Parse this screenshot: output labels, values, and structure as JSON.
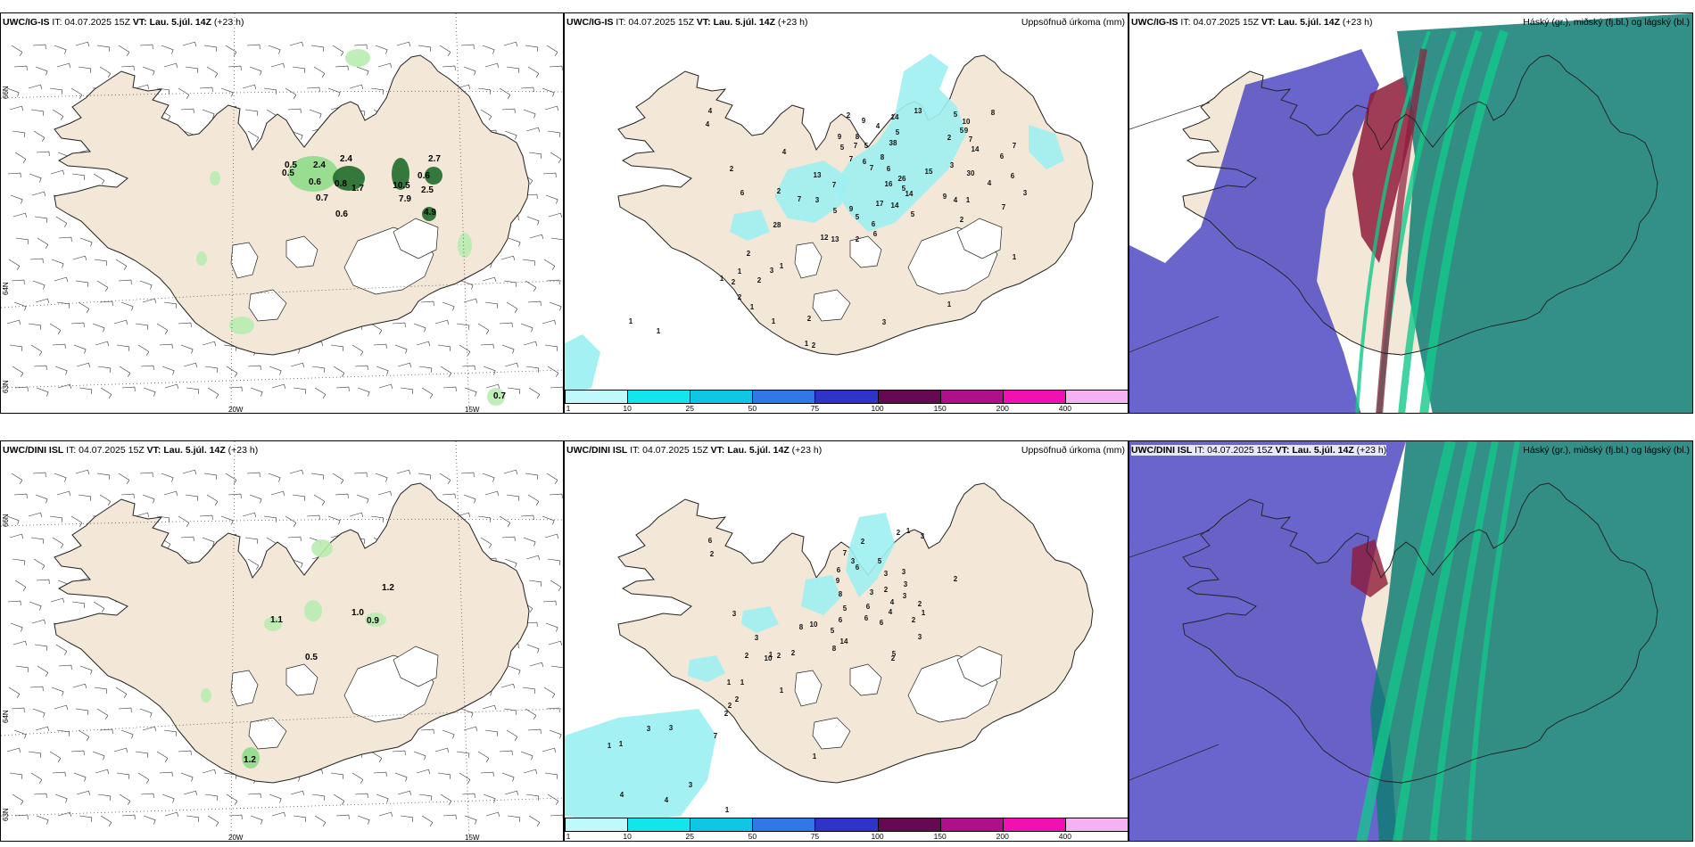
{
  "colors": {
    "land": "#f3e7d7",
    "coast": "#222222",
    "light_green": "#b9ecb0",
    "dark_green": "#1f6b2a",
    "cyan": "#9ef0f2",
    "purple": "#4f4ac4",
    "dark_red": "#8e1b3a",
    "teal": "#0f7d74",
    "bright_green": "#12c98a"
  },
  "headers": {
    "p1": {
      "model": "UWC/IG-IS",
      "run": " IT: 04.07.2025 15Z ",
      "vt_label": "VT:",
      "vt": " Lau. 5.júl. 14Z",
      "lead": " (+23 h)"
    },
    "p2": {
      "model": "UWC/IG-IS",
      "run": " IT: 04.07.2025 15Z ",
      "vt_label": "VT:",
      "vt": " Lau. 5.júl. 14Z",
      "lead": " (+23 h)",
      "right": "Uppsöfnuð úrkoma (mm)"
    },
    "p3": {
      "model": "UWC/IG-IS",
      "run": " IT: 04.07.2025 15Z ",
      "vt_label": "VT:",
      "vt": " Lau. 5.júl. 14Z",
      "lead": " (+23 h)",
      "right": "Háský (gr.), miðský (fj.bl.) og lágský (bl.)"
    },
    "p4": {
      "model": "UWC/DINI ISL",
      "run": " IT: 04.07.2025 15Z ",
      "vt_label": "VT:",
      "vt": " Lau. 5.júl. 14Z",
      "lead": " (+23 h)"
    },
    "p5": {
      "model": "UWC/DINI ISL",
      "run": " IT: 04.07.2025 15Z ",
      "vt_label": "VT:",
      "vt": " Lau. 5.júl. 14Z",
      "lead": " (+23 h)",
      "right": "Uppsöfnuð úrkoma (mm)"
    },
    "p6": {
      "model": "UWC/DINI ISL",
      "run": " IT: 04.07.2025 15Z ",
      "vt_label": "VT:",
      "vt": " Lau. 5.júl. 14Z",
      "lead": " (+23 h)",
      "right": "Háský (gr.), miðský (fj.bl.) og lágský (bl.)"
    }
  },
  "axis_labels": {
    "lat66": "66N",
    "lat64": "64N",
    "lat63": "63N",
    "lon20": "20W",
    "lon15": "15W"
  },
  "colorbar": {
    "colors": [
      "#bff9fb",
      "#12e6ec",
      "#10c6e6",
      "#2f78e6",
      "#2f33c8",
      "#640a52",
      "#b00f8a",
      "#f010b4",
      "#f4b2f2"
    ],
    "labels": [
      "1",
      "10",
      "25",
      "50",
      "75",
      "100",
      "150",
      "200",
      "400"
    ]
  },
  "wind_values_top": [
    {
      "t": "0.5",
      "x": 325,
      "y": 187
    },
    {
      "t": "0.5",
      "x": 322,
      "y": 196
    },
    {
      "t": "2.4",
      "x": 357,
      "y": 187
    },
    {
      "t": "2.4",
      "x": 387,
      "y": 180
    },
    {
      "t": "0.6",
      "x": 352,
      "y": 206
    },
    {
      "t": "0.8",
      "x": 381,
      "y": 208
    },
    {
      "t": "1.7",
      "x": 400,
      "y": 213
    },
    {
      "t": "0.7",
      "x": 360,
      "y": 224
    },
    {
      "t": "0.6",
      "x": 382,
      "y": 242
    },
    {
      "t": "2.7",
      "x": 486,
      "y": 180
    },
    {
      "t": "0.6",
      "x": 474,
      "y": 199
    },
    {
      "t": "10.5",
      "x": 449,
      "y": 210
    },
    {
      "t": "2.5",
      "x": 478,
      "y": 215
    },
    {
      "t": "7.9",
      "x": 453,
      "y": 225
    },
    {
      "t": "4.9",
      "x": 481,
      "y": 240
    },
    {
      "t": "0.7",
      "x": 559,
      "y": 446
    }
  ],
  "wind_values_bottom": [
    {
      "t": "1.2",
      "x": 434,
      "y": 661
    },
    {
      "t": "1.1",
      "x": 309,
      "y": 697
    },
    {
      "t": "1.0",
      "x": 400,
      "y": 689
    },
    {
      "t": "0.9",
      "x": 417,
      "y": 698
    },
    {
      "t": "0.5",
      "x": 348,
      "y": 739
    },
    {
      "t": "1.2",
      "x": 279,
      "y": 854
    }
  ],
  "precip_values_top": [
    {
      "t": "4",
      "x": 795,
      "y": 126
    },
    {
      "t": "4",
      "x": 792,
      "y": 141
    },
    {
      "t": "2",
      "x": 950,
      "y": 131
    },
    {
      "t": "9",
      "x": 967,
      "y": 137
    },
    {
      "t": "14",
      "x": 1002,
      "y": 133
    },
    {
      "t": "13",
      "x": 1028,
      "y": 126
    },
    {
      "t": "5",
      "x": 1070,
      "y": 130
    },
    {
      "t": "10",
      "x": 1082,
      "y": 138
    },
    {
      "t": "8",
      "x": 1112,
      "y": 128
    },
    {
      "t": "5",
      "x": 1077,
      "y": 148
    },
    {
      "t": "9",
      "x": 1082,
      "y": 148
    },
    {
      "t": "2",
      "x": 1063,
      "y": 156
    },
    {
      "t": "7",
      "x": 1087,
      "y": 158
    },
    {
      "t": "14",
      "x": 1092,
      "y": 169
    },
    {
      "t": "7",
      "x": 1136,
      "y": 165
    },
    {
      "t": "6",
      "x": 1122,
      "y": 177
    },
    {
      "t": "9",
      "x": 940,
      "y": 155
    },
    {
      "t": "8",
      "x": 960,
      "y": 155
    },
    {
      "t": "4",
      "x": 983,
      "y": 143
    },
    {
      "t": "5",
      "x": 1005,
      "y": 150
    },
    {
      "t": "38",
      "x": 1000,
      "y": 162
    },
    {
      "t": "7",
      "x": 958,
      "y": 165
    },
    {
      "t": "5",
      "x": 970,
      "y": 165
    },
    {
      "t": "7",
      "x": 953,
      "y": 180
    },
    {
      "t": "6",
      "x": 968,
      "y": 183
    },
    {
      "t": "8",
      "x": 988,
      "y": 178
    },
    {
      "t": "6",
      "x": 995,
      "y": 191
    },
    {
      "t": "7",
      "x": 976,
      "y": 190
    },
    {
      "t": "5",
      "x": 943,
      "y": 167
    },
    {
      "t": "16",
      "x": 995,
      "y": 208
    },
    {
      "t": "26",
      "x": 1010,
      "y": 202
    },
    {
      "t": "5",
      "x": 1012,
      "y": 213
    },
    {
      "t": "15",
      "x": 1040,
      "y": 194
    },
    {
      "t": "3",
      "x": 1066,
      "y": 187
    },
    {
      "t": "30",
      "x": 1087,
      "y": 196
    },
    {
      "t": "6",
      "x": 1134,
      "y": 199
    },
    {
      "t": "4",
      "x": 1108,
      "y": 207
    },
    {
      "t": "3",
      "x": 1148,
      "y": 218
    },
    {
      "t": "14",
      "x": 1018,
      "y": 219
    },
    {
      "t": "17",
      "x": 985,
      "y": 230
    },
    {
      "t": "14",
      "x": 1002,
      "y": 232
    },
    {
      "t": "5",
      "x": 1022,
      "y": 242
    },
    {
      "t": "9",
      "x": 1058,
      "y": 222
    },
    {
      "t": "4",
      "x": 1070,
      "y": 226
    },
    {
      "t": "1",
      "x": 1084,
      "y": 226
    },
    {
      "t": "7",
      "x": 1124,
      "y": 234
    },
    {
      "t": "2",
      "x": 1077,
      "y": 248
    },
    {
      "t": "2",
      "x": 819,
      "y": 191
    },
    {
      "t": "6",
      "x": 831,
      "y": 218
    },
    {
      "t": "2",
      "x": 872,
      "y": 216
    },
    {
      "t": "4",
      "x": 878,
      "y": 172
    },
    {
      "t": "13",
      "x": 915,
      "y": 198
    },
    {
      "t": "7",
      "x": 895,
      "y": 225
    },
    {
      "t": "3",
      "x": 915,
      "y": 226
    },
    {
      "t": "7",
      "x": 934,
      "y": 209
    },
    {
      "t": "5",
      "x": 935,
      "y": 238
    },
    {
      "t": "9",
      "x": 953,
      "y": 236
    },
    {
      "t": "5",
      "x": 960,
      "y": 245
    },
    {
      "t": "6",
      "x": 978,
      "y": 253
    },
    {
      "t": "6",
      "x": 980,
      "y": 264
    },
    {
      "t": "28",
      "x": 870,
      "y": 254
    },
    {
      "t": "12",
      "x": 923,
      "y": 268
    },
    {
      "t": "13",
      "x": 935,
      "y": 270
    },
    {
      "t": "2",
      "x": 960,
      "y": 270
    },
    {
      "t": "2",
      "x": 838,
      "y": 286
    },
    {
      "t": "1",
      "x": 828,
      "y": 306
    },
    {
      "t": "1",
      "x": 808,
      "y": 314
    },
    {
      "t": "2",
      "x": 821,
      "y": 318
    },
    {
      "t": "2",
      "x": 850,
      "y": 316
    },
    {
      "t": "3",
      "x": 864,
      "y": 305
    },
    {
      "t": "1",
      "x": 875,
      "y": 300
    },
    {
      "t": "2",
      "x": 828,
      "y": 335
    },
    {
      "t": "1",
      "x": 842,
      "y": 346
    },
    {
      "t": "1",
      "x": 866,
      "y": 362
    },
    {
      "t": "2",
      "x": 906,
      "y": 359
    },
    {
      "t": "3",
      "x": 990,
      "y": 363
    },
    {
      "t": "1",
      "x": 903,
      "y": 387
    },
    {
      "t": "2",
      "x": 911,
      "y": 389
    },
    {
      "t": "1",
      "x": 706,
      "y": 362
    },
    {
      "t": "1",
      "x": 737,
      "y": 373
    },
    {
      "t": "1",
      "x": 1136,
      "y": 290
    },
    {
      "t": "1",
      "x": 1063,
      "y": 343
    }
  ],
  "precip_values_bottom": [
    {
      "t": "2",
      "x": 1006,
      "y": 599
    },
    {
      "t": "1",
      "x": 1017,
      "y": 597
    },
    {
      "t": "3",
      "x": 1033,
      "y": 603
    },
    {
      "t": "2",
      "x": 966,
      "y": 609
    },
    {
      "t": "2",
      "x": 1070,
      "y": 651
    },
    {
      "t": "6",
      "x": 795,
      "y": 608
    },
    {
      "t": "2",
      "x": 797,
      "y": 623
    },
    {
      "t": "7",
      "x": 946,
      "y": 622
    },
    {
      "t": "6",
      "x": 939,
      "y": 641
    },
    {
      "t": "3",
      "x": 955,
      "y": 631
    },
    {
      "t": "6",
      "x": 960,
      "y": 638
    },
    {
      "t": "5",
      "x": 985,
      "y": 631
    },
    {
      "t": "9",
      "x": 938,
      "y": 653
    },
    {
      "t": "3",
      "x": 992,
      "y": 645
    },
    {
      "t": "2",
      "x": 992,
      "y": 663
    },
    {
      "t": "3",
      "x": 1012,
      "y": 643
    },
    {
      "t": "3",
      "x": 1014,
      "y": 657
    },
    {
      "t": "3",
      "x": 1013,
      "y": 670
    },
    {
      "t": "8",
      "x": 941,
      "y": 668
    },
    {
      "t": "3",
      "x": 976,
      "y": 666
    },
    {
      "t": "4",
      "x": 999,
      "y": 677
    },
    {
      "t": "4",
      "x": 997,
      "y": 688
    },
    {
      "t": "6",
      "x": 972,
      "y": 682
    },
    {
      "t": "5",
      "x": 946,
      "y": 684
    },
    {
      "t": "2",
      "x": 1030,
      "y": 679
    },
    {
      "t": "1",
      "x": 1034,
      "y": 689
    },
    {
      "t": "6",
      "x": 970,
      "y": 695
    },
    {
      "t": "6",
      "x": 987,
      "y": 700
    },
    {
      "t": "2",
      "x": 1023,
      "y": 697
    },
    {
      "t": "6",
      "x": 941,
      "y": 697
    },
    {
      "t": "10",
      "x": 911,
      "y": 702
    },
    {
      "t": "8",
      "x": 897,
      "y": 705
    },
    {
      "t": "5",
      "x": 932,
      "y": 709
    },
    {
      "t": "8",
      "x": 934,
      "y": 729
    },
    {
      "t": "14",
      "x": 945,
      "y": 721
    },
    {
      "t": "3",
      "x": 1030,
      "y": 716
    },
    {
      "t": "5",
      "x": 1001,
      "y": 735
    },
    {
      "t": "2",
      "x": 1000,
      "y": 740
    },
    {
      "t": "3",
      "x": 822,
      "y": 690
    },
    {
      "t": "3",
      "x": 847,
      "y": 717
    },
    {
      "t": "1",
      "x": 863,
      "y": 736
    },
    {
      "t": "2",
      "x": 836,
      "y": 737
    },
    {
      "t": "10",
      "x": 860,
      "y": 740
    },
    {
      "t": "2",
      "x": 872,
      "y": 737
    },
    {
      "t": "2",
      "x": 888,
      "y": 734
    },
    {
      "t": "1",
      "x": 816,
      "y": 767
    },
    {
      "t": "1",
      "x": 831,
      "y": 767
    },
    {
      "t": "1",
      "x": 875,
      "y": 776
    },
    {
      "t": "2",
      "x": 825,
      "y": 786
    },
    {
      "t": "2",
      "x": 817,
      "y": 793
    },
    {
      "t": "2",
      "x": 813,
      "y": 802
    },
    {
      "t": "7",
      "x": 801,
      "y": 827
    },
    {
      "t": "3",
      "x": 726,
      "y": 819
    },
    {
      "t": "3",
      "x": 751,
      "y": 818
    },
    {
      "t": "1",
      "x": 682,
      "y": 838
    },
    {
      "t": "1",
      "x": 695,
      "y": 836
    },
    {
      "t": "4",
      "x": 696,
      "y": 893
    },
    {
      "t": "4",
      "x": 746,
      "y": 899
    },
    {
      "t": "3",
      "x": 773,
      "y": 882
    },
    {
      "t": "1",
      "x": 814,
      "y": 910
    },
    {
      "t": "1",
      "x": 912,
      "y": 850
    }
  ]
}
